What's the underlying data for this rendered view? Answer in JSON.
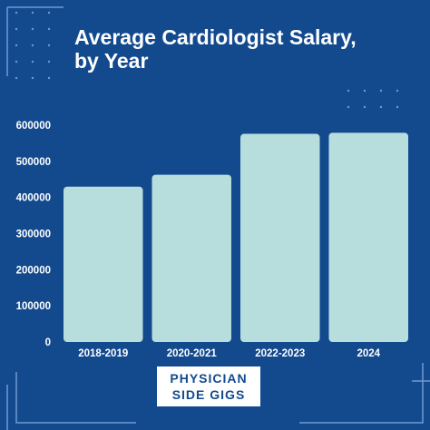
{
  "chart_data": {
    "type": "bar",
    "title_lines": [
      "Average Cardiologist Salary,",
      "by Year"
    ],
    "categories": [
      "2018-2019",
      "2020-2021",
      "2022-2023",
      "2024"
    ],
    "values": [
      430000,
      463000,
      576000,
      579000
    ],
    "yticks": [
      "0",
      "100000",
      "200000",
      "300000",
      "400000",
      "500000",
      "600000"
    ],
    "ylim": [
      0,
      600000
    ],
    "xlabel": "",
    "ylabel": "",
    "grid": false,
    "legend": "none"
  },
  "brand": {
    "line1": "PHYSICIAN",
    "line2": "SIDE GIGS"
  },
  "colors": {
    "background": "#134A8E",
    "bar": "#B7DEDD",
    "text": "#FFFFFF",
    "decoration": "#6E9AD1"
  }
}
